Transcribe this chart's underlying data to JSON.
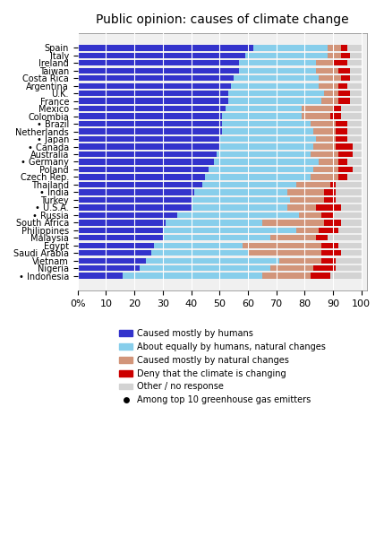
{
  "title": "Public opinion: causes of climate change",
  "countries": [
    "Spain",
    "Italy",
    "Ireland",
    "Taiwan",
    "Costa Rica",
    "Argentina",
    "U.K.",
    "France",
    "Mexico",
    "Colombia",
    "• Brazil",
    "Netherlands",
    "• Japan",
    "• Canada",
    "Australia",
    "• Germany",
    "Poland",
    "Czech Rep.",
    "Thailand",
    "• India",
    "Turkey",
    "• U.S.A.",
    "• Russia",
    "South Africa",
    "Philippines",
    "Malaysia",
    "Egypt",
    "Saudi Arabia",
    "Vietnam",
    "Nigeria",
    "• Indonesia"
  ],
  "humans": [
    62,
    59,
    57,
    57,
    55,
    54,
    53,
    53,
    52,
    51,
    51,
    51,
    50,
    50,
    49,
    48,
    46,
    45,
    44,
    41,
    40,
    40,
    35,
    31,
    30,
    30,
    27,
    26,
    24,
    22,
    16
  ],
  "equally": [
    26,
    29,
    27,
    27,
    30,
    31,
    34,
    33,
    27,
    28,
    31,
    32,
    34,
    33,
    33,
    37,
    37,
    37,
    33,
    33,
    35,
    34,
    43,
    34,
    47,
    38,
    31,
    34,
    47,
    46,
    49
  ],
  "natural": [
    5,
    5,
    6,
    8,
    8,
    7,
    5,
    6,
    11,
    10,
    9,
    8,
    7,
    8,
    10,
    7,
    9,
    10,
    12,
    13,
    12,
    10,
    8,
    22,
    8,
    16,
    28,
    26,
    15,
    15,
    17
  ],
  "deny": [
    2,
    3,
    5,
    4,
    3,
    3,
    4,
    4,
    3,
    4,
    4,
    4,
    4,
    6,
    5,
    3,
    5,
    3,
    2,
    4,
    4,
    9,
    4,
    6,
    7,
    4,
    6,
    7,
    5,
    8,
    7
  ],
  "other": [
    5,
    4,
    5,
    4,
    4,
    5,
    4,
    4,
    7,
    7,
    5,
    5,
    5,
    3,
    3,
    5,
    3,
    5,
    9,
    9,
    9,
    7,
    10,
    7,
    8,
    12,
    8,
    7,
    9,
    9,
    11
  ],
  "colors": {
    "humans": "#3333cc",
    "equally": "#87ceeb",
    "natural": "#d2957a",
    "deny": "#cc0000",
    "other": "#d3d3d3"
  },
  "legend_labels": [
    "Caused mostly by humans",
    "About equally by humans, natural changes",
    "Caused mostly by natural changes",
    "Deny that the climate is changing",
    "Other / no response",
    "Among top 10 greenhouse gas emitters"
  ],
  "xticks": [
    0,
    10,
    20,
    30,
    40,
    50,
    60,
    70,
    80,
    90,
    100
  ],
  "xticklabels": [
    "0%",
    "10",
    "20",
    "30",
    "40",
    "50",
    "60",
    "70",
    "80",
    "90",
    "100"
  ]
}
